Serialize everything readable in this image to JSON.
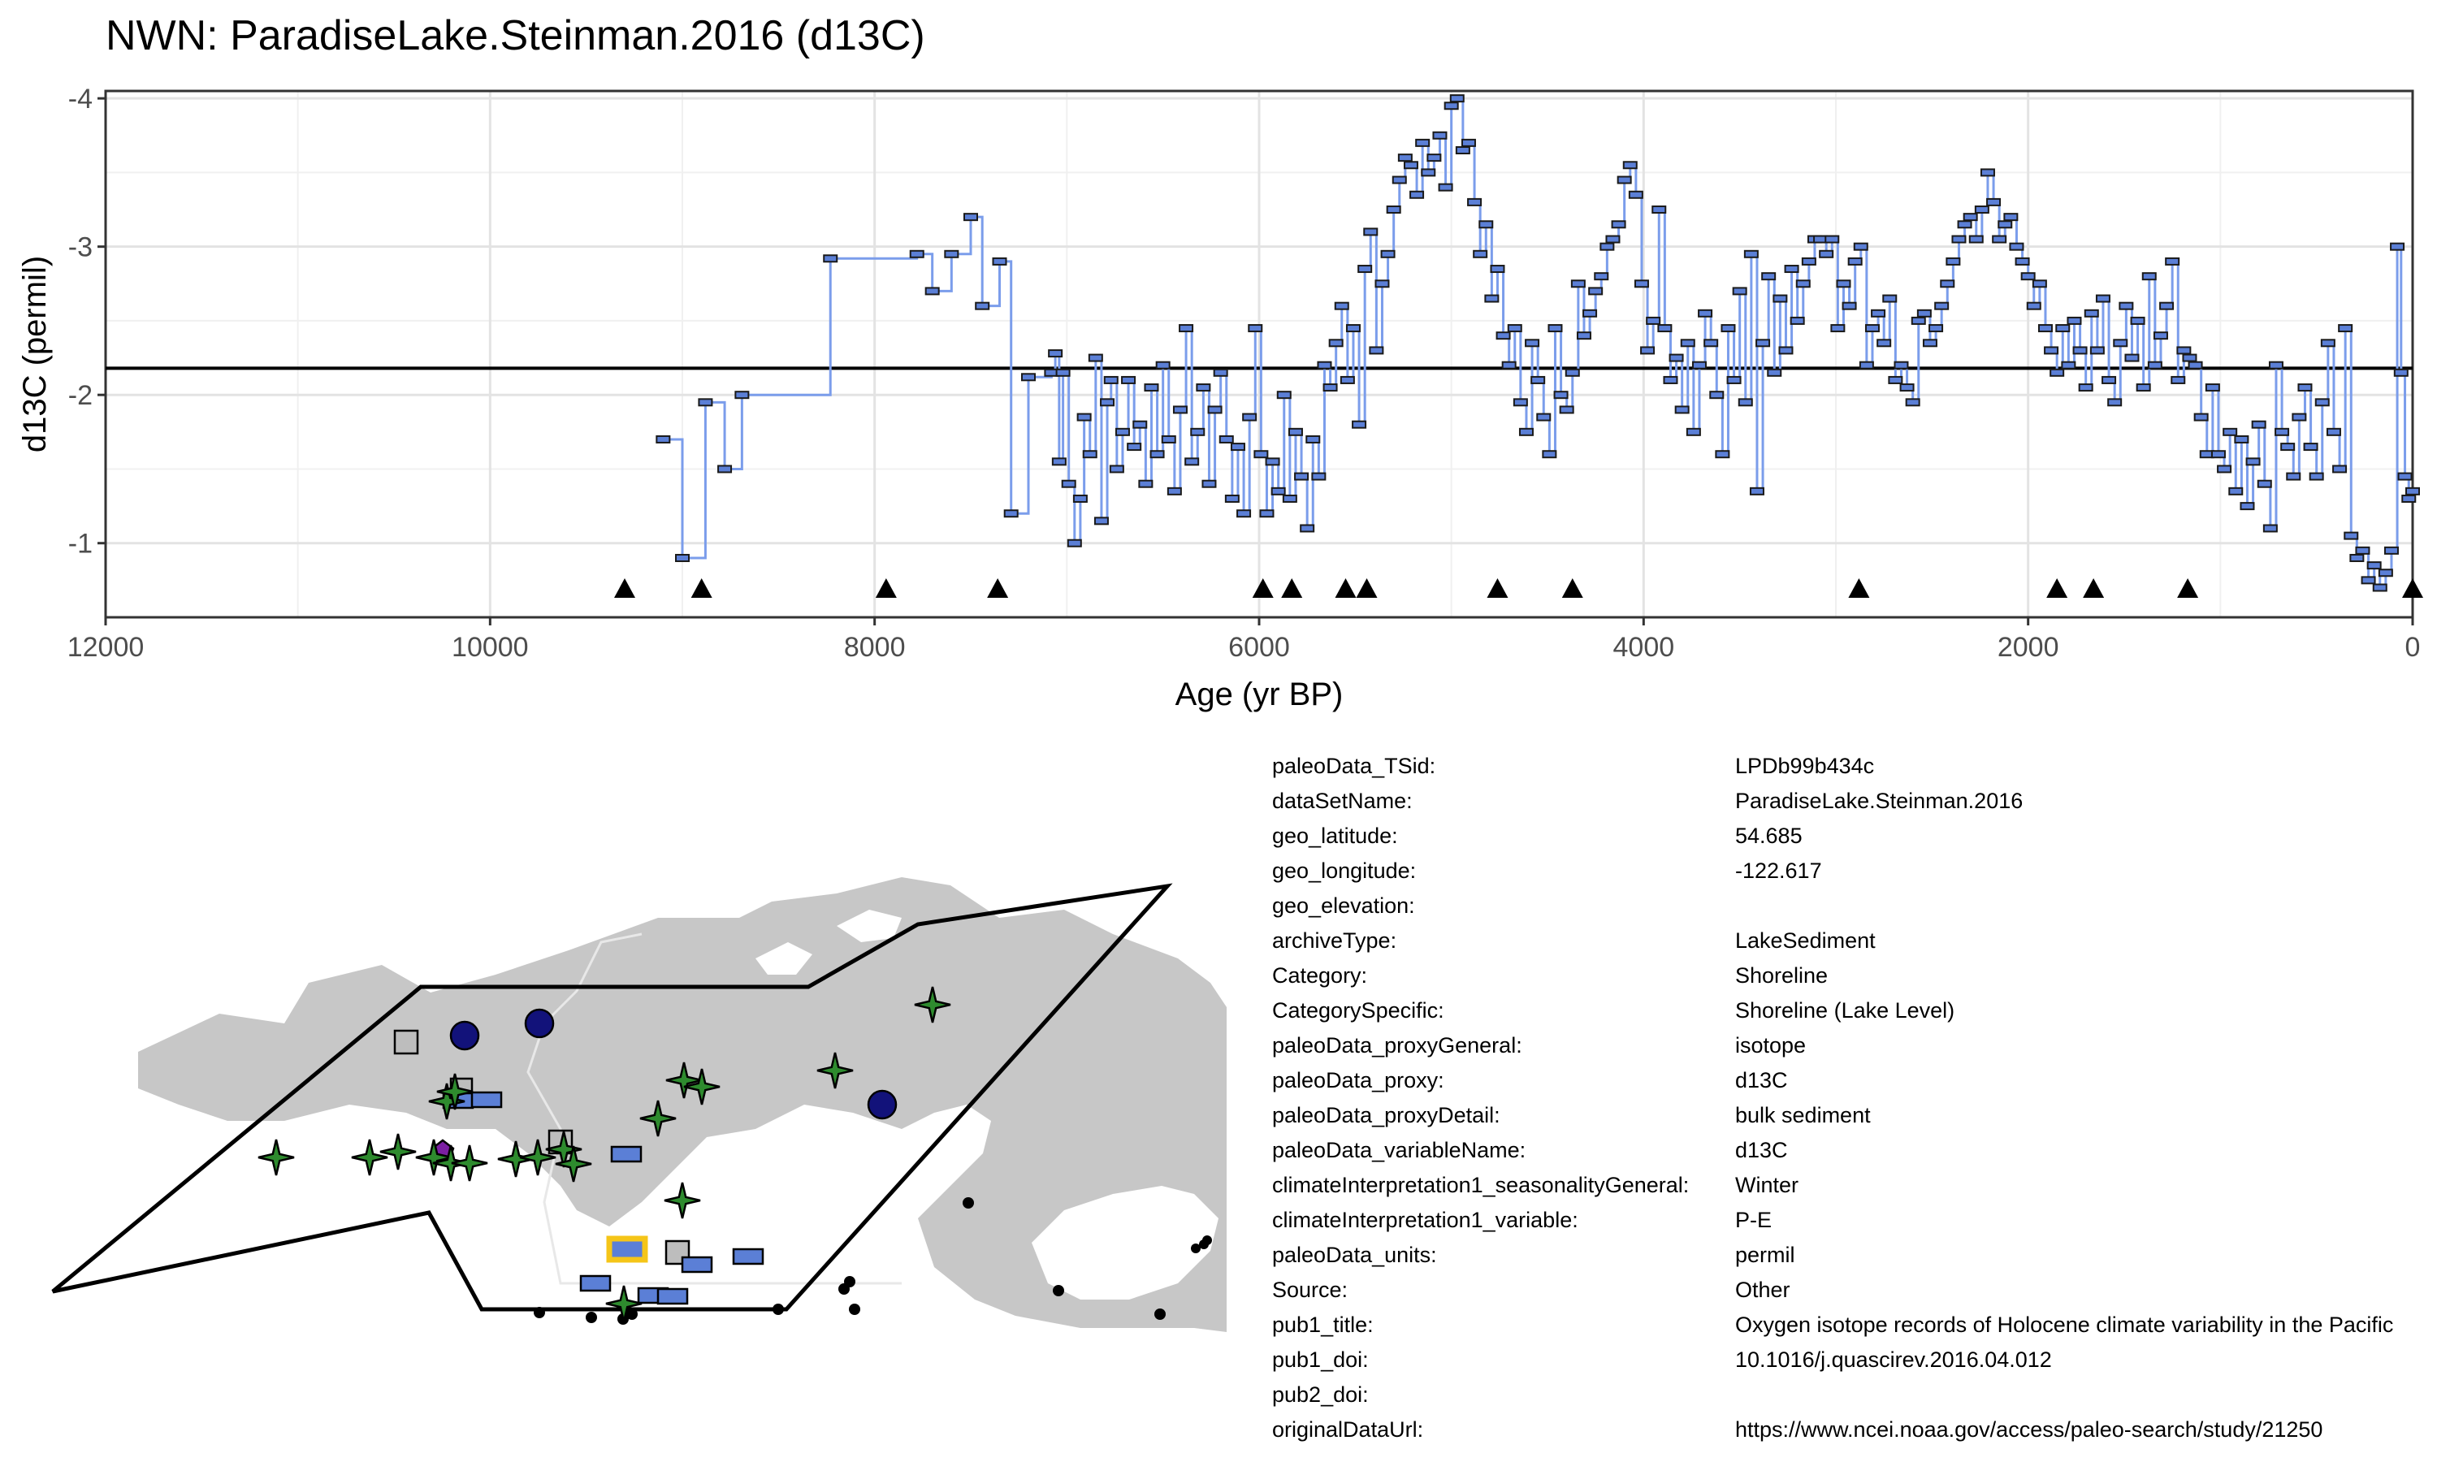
{
  "page": {
    "title": "NWN: ParadiseLake.Steinman.2016 (d13C)"
  },
  "chart_data": {
    "type": "line",
    "subtype": "step",
    "title": "NWN: ParadiseLake.Steinman.2016 (d13C)",
    "xlabel": "Age (yr BP)",
    "ylabel": "d13C (permil)",
    "x_reversed": true,
    "y_reversed": true,
    "xlim": [
      12000,
      0
    ],
    "ylim": [
      -0.5,
      -4.05
    ],
    "x_ticks": [
      12000,
      10000,
      8000,
      6000,
      4000,
      2000,
      0
    ],
    "y_ticks": [
      -1,
      -2,
      -3,
      -4
    ],
    "x_tick_labels": [
      "12000",
      "10000",
      "8000",
      "6000",
      "4000",
      "2000",
      "0"
    ],
    "y_tick_labels": [
      "-1",
      "-2",
      "-3",
      "-4"
    ],
    "grid": true,
    "line_color": "#7B9DEB",
    "marker_color": "#5B7FD6",
    "marker_edge": "#1a1a1a",
    "reference_line": -2.18,
    "reference_line_color": "#000000",
    "chronology_markers": [
      9300,
      8900,
      7940,
      7360,
      5980,
      5830,
      5550,
      5440,
      4760,
      4370,
      2880,
      1850,
      1660,
      1170,
      0
    ],
    "series": [
      {
        "x": [
          9100,
          9000,
          8880,
          8780,
          8690,
          8230,
          7780,
          7700,
          7600,
          7500,
          7440,
          7350,
          7290,
          7200,
          7080,
          7060,
          7040,
          7020,
          6990,
          6960,
          6930,
          6910,
          6880,
          6850,
          6820,
          6790,
          6770,
          6740,
          6710,
          6680,
          6650,
          6620,
          6590,
          6560,
          6530,
          6500,
          6470,
          6440,
          6410,
          6380,
          6350,
          6320,
          6290,
          6260,
          6230,
          6200,
          6170,
          6140,
          6110,
          6080,
          6050,
          6020,
          5990,
          5960,
          5930,
          5900,
          5870,
          5840,
          5810,
          5780,
          5750,
          5720,
          5690,
          5660,
          5630,
          5600,
          5570,
          5540,
          5510,
          5480,
          5450,
          5420,
          5390,
          5360,
          5330,
          5300,
          5270,
          5240,
          5210,
          5180,
          5150,
          5120,
          5090,
          5060,
          5030,
          5000,
          4970,
          4940,
          4910,
          4880,
          4850,
          4820,
          4790,
          4760,
          4730,
          4700,
          4670,
          4640,
          4610,
          4580,
          4550,
          4520,
          4490,
          4460,
          4430,
          4400,
          4370,
          4340,
          4310,
          4280,
          4250,
          4220,
          4190,
          4160,
          4130,
          4100,
          4070,
          4040,
          4010,
          3980,
          3950,
          3920,
          3890,
          3860,
          3830,
          3800,
          3770,
          3740,
          3710,
          3680,
          3650,
          3620,
          3590,
          3560,
          3530,
          3500,
          3470,
          3440,
          3410,
          3380,
          3350,
          3320,
          3290,
          3260,
          3230,
          3200,
          3170,
          3140,
          3110,
          3080,
          3050,
          3020,
          2990,
          2960,
          2930,
          2900,
          2870,
          2840,
          2810,
          2780,
          2750,
          2720,
          2690,
          2660,
          2630,
          2600,
          2570,
          2540,
          2510,
          2480,
          2450,
          2420,
          2390,
          2360,
          2330,
          2300,
          2270,
          2240,
          2210,
          2180,
          2150,
          2120,
          2090,
          2060,
          2030,
          2000,
          1970,
          1940,
          1910,
          1880,
          1850,
          1820,
          1790,
          1760,
          1730,
          1700,
          1670,
          1640,
          1610,
          1580,
          1550,
          1520,
          1490,
          1460,
          1430,
          1400,
          1370,
          1340,
          1310,
          1280,
          1250,
          1220,
          1190,
          1160,
          1130,
          1100,
          1070,
          1040,
          1010,
          980,
          950,
          920,
          890,
          860,
          830,
          800,
          770,
          740,
          710,
          680,
          650,
          620,
          590,
          560,
          530,
          500,
          470,
          440,
          410,
          380,
          350,
          320,
          290,
          260,
          230,
          200,
          170,
          140,
          110,
          80,
          60,
          40,
          20,
          0
        ],
        "y": [
          -1.7,
          -0.9,
          -1.95,
          -1.5,
          -2.0,
          -2.92,
          -2.95,
          -2.7,
          -2.95,
          -3.2,
          -2.6,
          -2.9,
          -1.2,
          -2.12,
          -2.15,
          -2.28,
          -1.55,
          -2.15,
          -1.4,
          -1.0,
          -1.3,
          -1.85,
          -1.6,
          -2.25,
          -1.15,
          -1.95,
          -2.1,
          -1.5,
          -1.75,
          -2.1,
          -1.65,
          -1.8,
          -1.4,
          -2.05,
          -1.6,
          -2.2,
          -1.7,
          -1.35,
          -1.9,
          -2.45,
          -1.55,
          -1.75,
          -2.05,
          -1.4,
          -1.9,
          -2.15,
          -1.7,
          -1.3,
          -1.65,
          -1.2,
          -1.85,
          -2.45,
          -1.6,
          -1.2,
          -1.55,
          -1.35,
          -2.0,
          -1.3,
          -1.75,
          -1.45,
          -1.1,
          -1.7,
          -1.45,
          -2.2,
          -2.05,
          -2.35,
          -2.6,
          -2.1,
          -2.45,
          -1.8,
          -2.85,
          -3.1,
          -2.3,
          -2.75,
          -2.95,
          -3.25,
          -3.45,
          -3.6,
          -3.55,
          -3.35,
          -3.7,
          -3.5,
          -3.6,
          -3.75,
          -3.4,
          -3.95,
          -4.0,
          -3.65,
          -3.7,
          -3.3,
          -2.95,
          -3.15,
          -2.65,
          -2.85,
          -2.4,
          -2.2,
          -2.45,
          -1.95,
          -1.75,
          -2.35,
          -2.1,
          -1.85,
          -1.6,
          -2.45,
          -2.0,
          -1.9,
          -2.15,
          -2.75,
          -2.4,
          -2.55,
          -2.7,
          -2.8,
          -3.0,
          -3.05,
          -3.15,
          -3.45,
          -3.55,
          -3.35,
          -2.75,
          -2.3,
          -2.5,
          -3.25,
          -2.45,
          -2.1,
          -2.25,
          -1.9,
          -2.35,
          -1.75,
          -2.2,
          -2.55,
          -2.35,
          -2.0,
          -1.6,
          -2.45,
          -2.1,
          -2.7,
          -1.95,
          -2.95,
          -1.35,
          -2.35,
          -2.8,
          -2.15,
          -2.65,
          -2.3,
          -2.85,
          -2.5,
          -2.75,
          -2.9,
          -3.05,
          -3.05,
          -2.95,
          -3.05,
          -2.45,
          -2.75,
          -2.6,
          -2.9,
          -3.0,
          -2.2,
          -2.45,
          -2.55,
          -2.35,
          -2.65,
          -2.1,
          -2.2,
          -2.05,
          -1.95,
          -2.5,
          -2.55,
          -2.35,
          -2.45,
          -2.6,
          -2.75,
          -2.9,
          -3.05,
          -3.15,
          -3.2,
          -3.05,
          -3.25,
          -3.5,
          -3.3,
          -3.05,
          -3.15,
          -3.2,
          -3.0,
          -2.9,
          -2.8,
          -2.6,
          -2.75,
          -2.45,
          -2.3,
          -2.15,
          -2.45,
          -2.2,
          -2.5,
          -2.3,
          -2.05,
          -2.55,
          -2.3,
          -2.65,
          -2.1,
          -1.95,
          -2.35,
          -2.6,
          -2.25,
          -2.5,
          -2.05,
          -2.8,
          -2.2,
          -2.4,
          -2.6,
          -2.9,
          -2.1,
          -2.3,
          -2.25,
          -2.2,
          -1.85,
          -1.6,
          -2.05,
          -1.6,
          -1.5,
          -1.75,
          -1.35,
          -1.7,
          -1.25,
          -1.55,
          -1.8,
          -1.4,
          -1.1,
          -2.2,
          -1.75,
          -1.65,
          -1.45,
          -1.85,
          -2.05,
          -1.65,
          -1.45,
          -1.95,
          -2.35,
          -1.75,
          -1.5,
          -2.45,
          -1.05,
          -0.9,
          -0.95,
          -0.75,
          -0.85,
          -0.7,
          -0.8,
          -0.95,
          -3.0,
          -2.15,
          -1.45,
          -1.3,
          -1.35
        ]
      }
    ]
  },
  "map": {
    "region_outline_color": "#000000",
    "land_color": "#c7c7c7",
    "markers": [
      {
        "shape": "star",
        "color": "#2e8b2e"
      },
      {
        "shape": "circle",
        "color": "#12127a"
      },
      {
        "shape": "square",
        "color": "#bdbdbd"
      },
      {
        "shape": "rect",
        "color": "#5b7fd6"
      },
      {
        "shape": "pentagon",
        "color": "#7b1fa2"
      },
      {
        "shape": "highlight",
        "color": "#f5c518"
      },
      {
        "shape": "dot",
        "color": "#000000"
      }
    ]
  },
  "metadata": {
    "rows": [
      {
        "key": "paleoData_TSid:",
        "value": "LPDb99b434c"
      },
      {
        "key": "dataSetName:",
        "value": "ParadiseLake.Steinman.2016"
      },
      {
        "key": "geo_latitude:",
        "value": "54.685"
      },
      {
        "key": "geo_longitude:",
        "value": "-122.617"
      },
      {
        "key": "geo_elevation:",
        "value": ""
      },
      {
        "key": "archiveType:",
        "value": "LakeSediment"
      },
      {
        "key": "Category:",
        "value": "Shoreline"
      },
      {
        "key": "CategorySpecific:",
        "value": "Shoreline (Lake Level)"
      },
      {
        "key": "paleoData_proxyGeneral:",
        "value": "isotope"
      },
      {
        "key": "paleoData_proxy:",
        "value": "d13C"
      },
      {
        "key": "paleoData_proxyDetail:",
        "value": "bulk sediment"
      },
      {
        "key": "paleoData_variableName:",
        "value": "d13C"
      },
      {
        "key": "climateInterpretation1_seasonalityGeneral:",
        "value": "Winter"
      },
      {
        "key": "climateInterpretation1_variable:",
        "value": "P-E"
      },
      {
        "key": "paleoData_units:",
        "value": "permil"
      },
      {
        "key": "Source:",
        "value": "Other"
      },
      {
        "key": "pub1_title:",
        "value": "Oxygen isotope records of Holocene climate variability in the Pacific"
      },
      {
        "key": "pub1_doi:",
        "value": "10.1016/j.quascirev.2016.04.012"
      },
      {
        "key": "pub2_doi:",
        "value": ""
      },
      {
        "key": "originalDataUrl:",
        "value": "https://www.ncei.noaa.gov/access/paleo-search/study/21250"
      }
    ]
  }
}
